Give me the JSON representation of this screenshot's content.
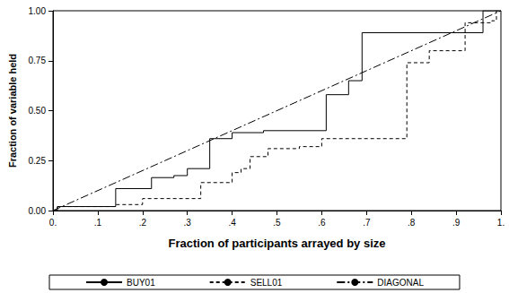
{
  "chart_data": {
    "type": "line",
    "x_label": "Fraction of participants arrayed by size",
    "y_label": "Fraction of variable held",
    "xlim": [
      0,
      1
    ],
    "ylim": [
      0,
      1
    ],
    "xticks": [
      {
        "value": 0,
        "label": "0."
      },
      {
        "value": 0.1,
        "label": ".1"
      },
      {
        "value": 0.2,
        "label": ".2"
      },
      {
        "value": 0.3,
        "label": ".3"
      },
      {
        "value": 0.4,
        "label": ".4"
      },
      {
        "value": 0.5,
        "label": ".5"
      },
      {
        "value": 0.6,
        "label": ".6"
      },
      {
        "value": 0.7,
        "label": ".7"
      },
      {
        "value": 0.8,
        "label": ".8"
      },
      {
        "value": 0.9,
        "label": ".9"
      },
      {
        "value": 1,
        "label": "1."
      }
    ],
    "yticks": [
      {
        "value": 0,
        "label": "0.00"
      },
      {
        "value": 0.25,
        "label": "0.25"
      },
      {
        "value": 0.5,
        "label": "0.50"
      },
      {
        "value": 0.75,
        "label": "0.75"
      },
      {
        "value": 1,
        "label": "1.00"
      }
    ],
    "grid": false,
    "legend": "bottom",
    "series": [
      {
        "name": "BUY01",
        "type": "step",
        "color": "#000000",
        "line_style": "solid",
        "x": [
          0,
          0.01,
          0.14,
          0.22,
          0.27,
          0.3,
          0.35,
          0.4,
          0.47,
          0.61,
          0.66,
          0.69,
          0.96,
          1.0
        ],
        "values": [
          0,
          0.02,
          0.11,
          0.165,
          0.175,
          0.21,
          0.36,
          0.39,
          0.4,
          0.58,
          0.65,
          0.89,
          1.0,
          1.0
        ]
      },
      {
        "name": "SELL01",
        "type": "step",
        "color": "#000000",
        "line_style": "dashed",
        "x": [
          0,
          0.01,
          0.14,
          0.2,
          0.33,
          0.4,
          0.42,
          0.44,
          0.48,
          0.55,
          0.6,
          0.79,
          0.84,
          0.92,
          0.98,
          0.99,
          1.0
        ],
        "values": [
          0,
          0.02,
          0.03,
          0.06,
          0.14,
          0.19,
          0.21,
          0.27,
          0.31,
          0.32,
          0.36,
          0.74,
          0.8,
          0.94,
          0.95,
          1.0,
          1.0
        ]
      },
      {
        "name": "DIAGONAL",
        "type": "line",
        "color": "#000000",
        "line_style": "dashdot",
        "x": [
          0,
          1
        ],
        "values": [
          0,
          1
        ]
      }
    ]
  }
}
